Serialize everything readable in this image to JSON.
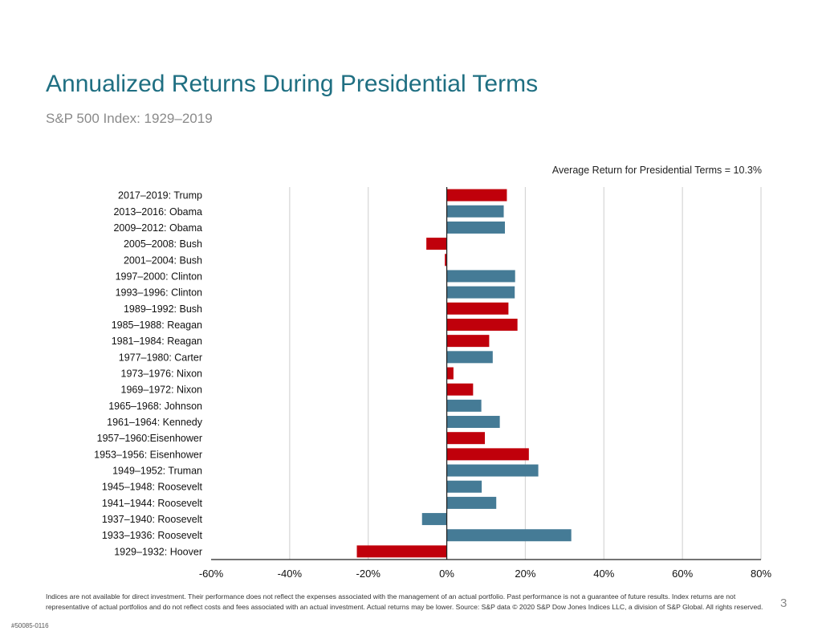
{
  "header": {
    "title": "Annualized Returns During Presidential Terms",
    "subtitle": "S&P 500 Index: 1929–2019"
  },
  "annotation": "Average Return for Presidential Terms = 10.3%",
  "footer": {
    "disclaimer": "Indices are not available for direct investment. Their performance does not reflect the expenses associated with the management of an actual portfolio. Past performance is not a guarantee of future results. Index returns are not representative of actual portfolios and do not reflect costs and fees associated with an actual investment. Actual returns may be lower. Source: S&P data © 2020 S&P Dow Jones Indices LLC, a division of S&P Global. All rights reserved.",
    "page_number": "3",
    "job_id": "#50085-0116"
  },
  "colors": {
    "red": "#c0000b",
    "blue": "#457b96"
  },
  "chart_data": {
    "type": "bar",
    "orientation": "horizontal",
    "xlim": [
      -60,
      80
    ],
    "x_ticks": [
      "-60%",
      "-40%",
      "-20%",
      "0%",
      "20%",
      "40%",
      "60%",
      "80%"
    ],
    "x_tick_values": [
      -60,
      -40,
      -20,
      0,
      20,
      40,
      60,
      80
    ],
    "grid": true,
    "categories": [
      "2017–2019: Trump",
      "2013–2016: Obama",
      "2009–2012: Obama",
      "2005–2008: Bush",
      "2001–2004: Bush",
      "1997–2000: Clinton",
      "1993–1996: Clinton",
      "1989–1992: Bush",
      "1985–1988: Reagan",
      "1981–1984: Reagan",
      "1977–1980: Carter",
      "1973–1976: Nixon",
      "1969–1972: Nixon",
      "1965–1968: Johnson",
      "1961–1964: Kennedy",
      "1957–1960:Eisenhower",
      "1953–1956: Eisenhower",
      "1949–1952: Truman",
      "1945–1948: Roosevelt",
      "1941–1944: Roosevelt",
      "1937–1940: Roosevelt",
      "1933–1936: Roosevelt",
      "1929–1932: Hoover"
    ],
    "values": [
      15.3,
      14.5,
      14.8,
      -5.2,
      -0.5,
      17.4,
      17.3,
      15.7,
      18.0,
      10.8,
      11.7,
      1.7,
      6.7,
      8.8,
      13.5,
      9.7,
      20.9,
      23.3,
      8.9,
      12.6,
      -6.3,
      31.7,
      -22.9
    ],
    "bar_colors": [
      "red",
      "blue",
      "blue",
      "red",
      "red",
      "blue",
      "blue",
      "red",
      "red",
      "red",
      "blue",
      "red",
      "red",
      "blue",
      "blue",
      "red",
      "red",
      "blue",
      "blue",
      "blue",
      "blue",
      "blue",
      "red"
    ]
  }
}
